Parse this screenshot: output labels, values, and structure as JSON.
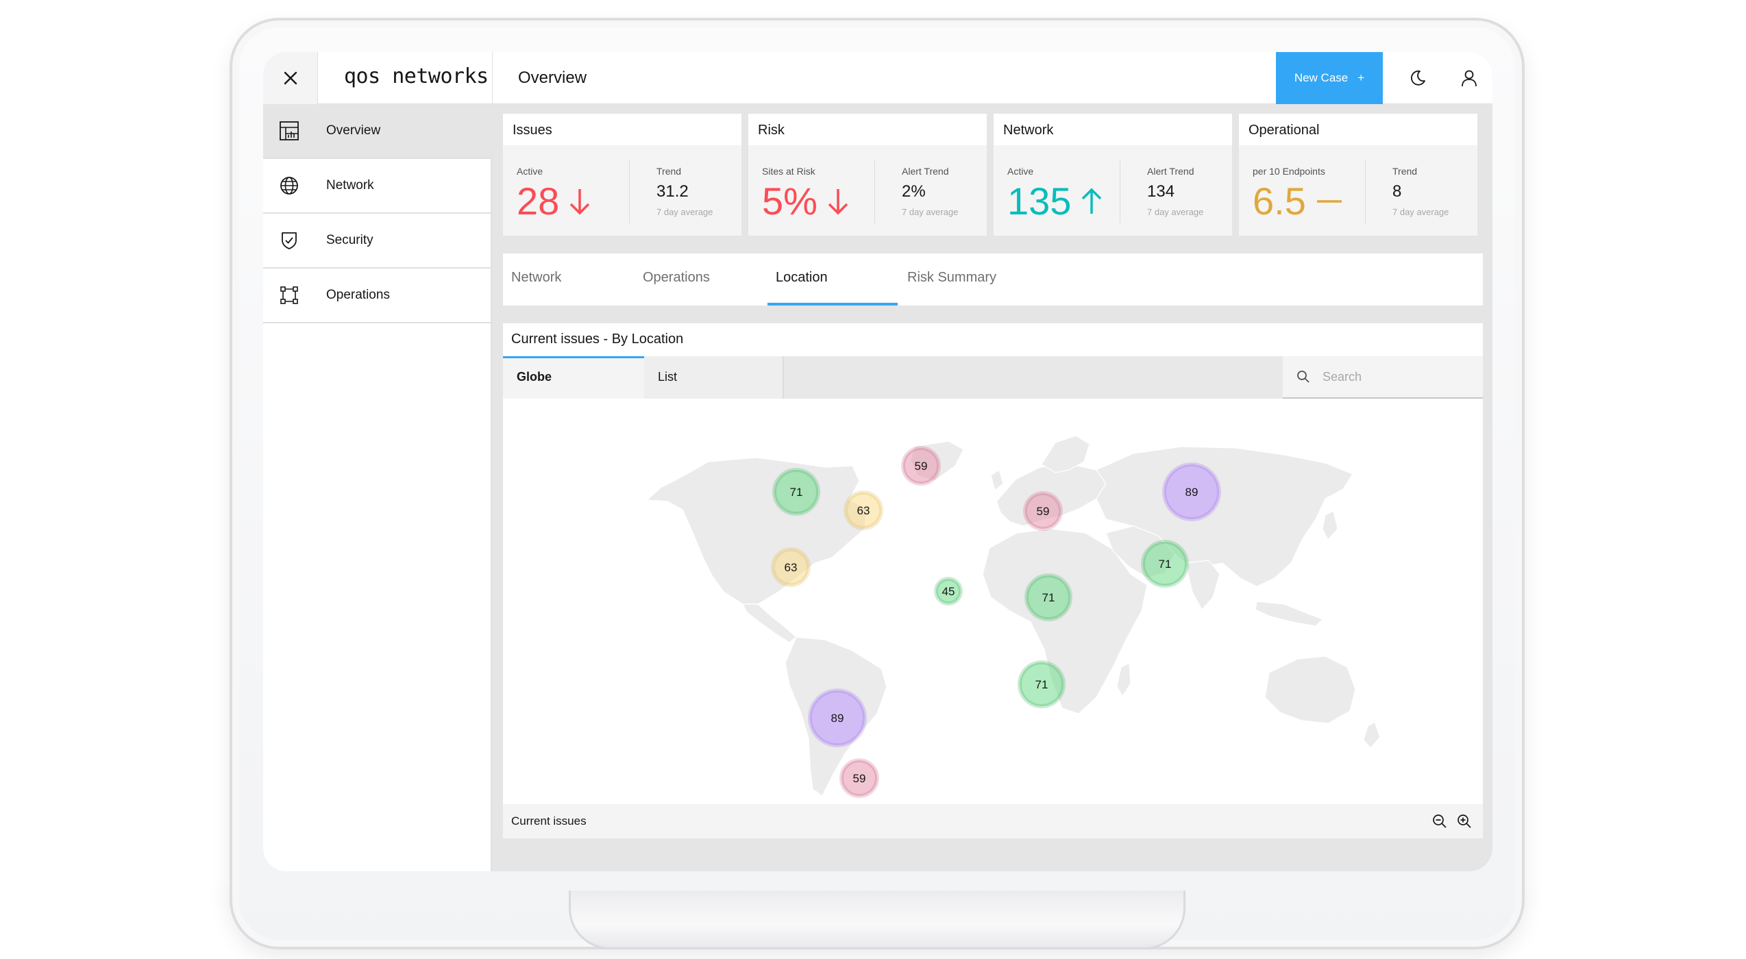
{
  "header": {
    "logo": "qos networks",
    "title": "Overview",
    "new_case_label": "New Case",
    "new_case_symbol": "+"
  },
  "sidebar": {
    "items": [
      {
        "label": "Overview",
        "icon": "dashboard-icon",
        "active": true
      },
      {
        "label": "Network",
        "icon": "globe-icon"
      },
      {
        "label": "Security",
        "icon": "shield-icon"
      },
      {
        "label": "Operations",
        "icon": "operations-icon"
      }
    ]
  },
  "kpis": [
    {
      "title": "Issues",
      "primary_label": "Active",
      "primary_value": "28",
      "primary_trend": "down",
      "primary_color": "#fa4d56",
      "secondary_label": "Trend",
      "secondary_value": "31.2",
      "secondary_note": "7 day average"
    },
    {
      "title": "Risk",
      "primary_label": "Sites at Risk",
      "primary_value": "5%",
      "primary_trend": "down",
      "primary_color": "#fa4d56",
      "secondary_label": "Alert Trend",
      "secondary_value": "2%",
      "secondary_note": "7 day average"
    },
    {
      "title": "Network",
      "primary_label": "Active",
      "primary_value": "135",
      "primary_trend": "up",
      "primary_color": "#08bdba",
      "secondary_label": "Alert Trend",
      "secondary_value": "134",
      "secondary_note": "7 day average"
    },
    {
      "title": "Operational",
      "primary_label": "per 10 Endpoints",
      "primary_value": "6.5",
      "primary_trend": "flat",
      "primary_color": "#e0a83b",
      "secondary_label": "Trend",
      "secondary_value": "8",
      "secondary_note": "7 day average"
    }
  ],
  "tabs": [
    {
      "label": "Network"
    },
    {
      "label": "Operations"
    },
    {
      "label": "Location",
      "active": true
    },
    {
      "label": "Risk Summary"
    }
  ],
  "panel": {
    "title": "Current issues - By Location",
    "subtabs": [
      {
        "label": "Globe",
        "active": true
      },
      {
        "label": "List"
      }
    ],
    "search_placeholder": "Search",
    "footer_label": "Current issues"
  },
  "colors": {
    "accent": "#33a7f5",
    "negative": "#fa4d56",
    "positive": "#08bdba",
    "warning": "#e0a83b"
  },
  "map_markers": [
    {
      "value": "71",
      "tone": "green",
      "size": "m"
    },
    {
      "value": "59",
      "tone": "pink",
      "size": "s"
    },
    {
      "value": "63",
      "tone": "yellow",
      "size": "s"
    },
    {
      "value": "63",
      "tone": "yellow",
      "size": "s"
    },
    {
      "value": "59",
      "tone": "pink",
      "size": "s"
    },
    {
      "value": "89",
      "tone": "purple",
      "size": "l"
    },
    {
      "value": "71",
      "tone": "green",
      "size": "m"
    },
    {
      "value": "45",
      "tone": "green",
      "size": "xs"
    },
    {
      "value": "71",
      "tone": "green",
      "size": "m"
    },
    {
      "value": "71",
      "tone": "green",
      "size": "m"
    },
    {
      "value": "89",
      "tone": "purple",
      "size": "l"
    },
    {
      "value": "59",
      "tone": "pink",
      "size": "s"
    }
  ]
}
